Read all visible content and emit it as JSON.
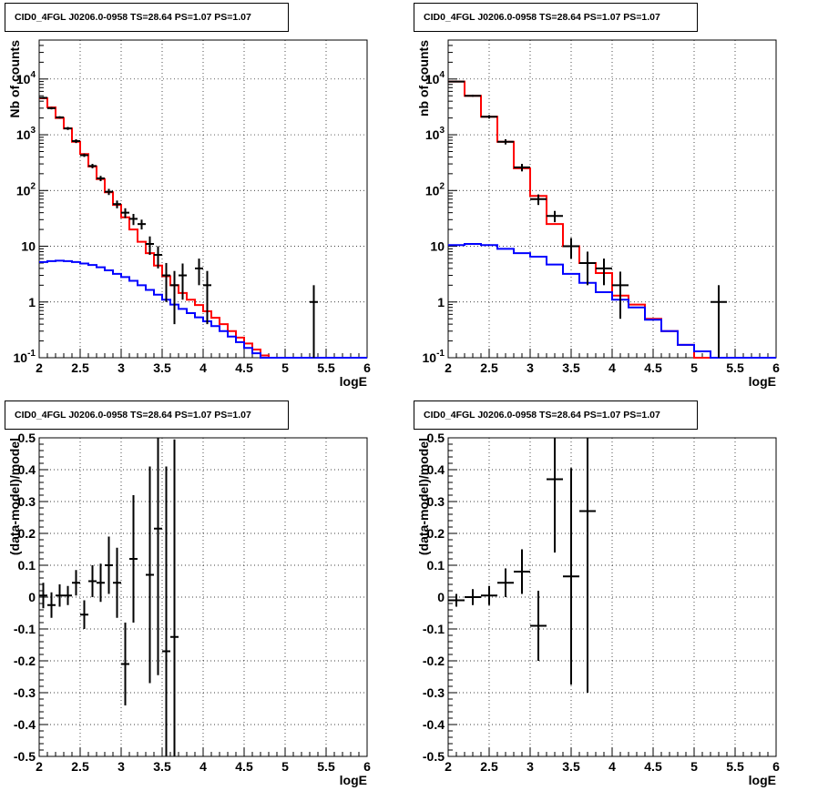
{
  "chart_data": [
    {
      "type": "line",
      "title": "CID0_4FGL J0206.0-0958 TS=28.64 PS=1.07 PS=1.07",
      "xlabel": "logE",
      "ylabel": "Nb of counts",
      "xlim": [
        2,
        6
      ],
      "ylim": [
        0.1,
        50000
      ],
      "yscale": "log",
      "grid": true,
      "x_ticks": [
        "2",
        "2.5",
        "3",
        "3.5",
        "4",
        "4.5",
        "5",
        "5.5",
        "6"
      ],
      "y_ticks": [
        "10^-1",
        "1",
        "10",
        "10^2",
        "10^3",
        "10^4"
      ],
      "series": [
        {
          "kind": "step",
          "color": "#ff0000",
          "bin_width": 0.1,
          "x": [
            2.05,
            2.15,
            2.25,
            2.35,
            2.45,
            2.55,
            2.65,
            2.75,
            2.85,
            2.95,
            3.05,
            3.15,
            3.25,
            3.35,
            3.45,
            3.55,
            3.65,
            3.75,
            3.85,
            3.95,
            4.05,
            4.15,
            4.25,
            4.35,
            4.45,
            4.55,
            4.65,
            4.75,
            4.85,
            4.95,
            5.05,
            5.15,
            5.25,
            5.35,
            5.45,
            5.55,
            5.65,
            5.75,
            5.85,
            5.95
          ],
          "values": [
            4500,
            3100,
            2000,
            1300,
            750,
            450,
            270,
            160,
            93,
            55,
            33,
            20,
            12,
            7.5,
            4.5,
            2.9,
            2.0,
            1.45,
            1.1,
            0.88,
            0.68,
            0.52,
            0.4,
            0.3,
            0.23,
            0.18,
            0.14,
            0.11,
            0.1,
            0.1,
            0.1,
            0.1,
            0.1,
            0.1,
            0.1,
            0.1,
            0.1,
            0.1,
            0.1,
            0.1
          ]
        },
        {
          "kind": "step",
          "color": "#0000ff",
          "bin_width": 0.1,
          "x": [
            2.05,
            2.15,
            2.25,
            2.35,
            2.45,
            2.55,
            2.65,
            2.75,
            2.85,
            2.95,
            3.05,
            3.15,
            3.25,
            3.35,
            3.45,
            3.55,
            3.65,
            3.75,
            3.85,
            3.95,
            4.05,
            4.15,
            4.25,
            4.35,
            4.45,
            4.55,
            4.65,
            4.75,
            4.85,
            4.95,
            5.05,
            5.15,
            5.25,
            5.35,
            5.45,
            5.55,
            5.65,
            5.75,
            5.85,
            5.95
          ],
          "values": [
            5.2,
            5.4,
            5.5,
            5.4,
            5.2,
            4.9,
            4.6,
            4.2,
            3.7,
            3.2,
            2.8,
            2.4,
            2.0,
            1.65,
            1.35,
            1.1,
            0.9,
            0.75,
            0.63,
            0.53,
            0.45,
            0.37,
            0.3,
            0.24,
            0.19,
            0.15,
            0.12,
            0.1,
            0.1,
            0.1,
            0.1,
            0.1,
            0.1,
            0.1,
            0.1,
            0.1,
            0.1,
            0.1,
            0.1,
            0.1
          ]
        },
        {
          "kind": "points",
          "color": "#000000",
          "x_err": 0.05,
          "points": [
            [
              2.05,
              4600,
              200
            ],
            [
              2.15,
              3000,
              150
            ],
            [
              2.25,
              2050,
              100
            ],
            [
              2.35,
              1300,
              80
            ],
            [
              2.45,
              770,
              60
            ],
            [
              2.55,
              430,
              30
            ],
            [
              2.65,
              275,
              25
            ],
            [
              2.75,
              165,
              18
            ],
            [
              2.85,
              95,
              12
            ],
            [
              2.95,
              57,
              9
            ],
            [
              3.05,
              40,
              8
            ],
            [
              3.15,
              31,
              7
            ],
            [
              3.25,
              25,
              5
            ],
            [
              3.35,
              11,
              4
            ],
            [
              3.45,
              7,
              3
            ],
            [
              3.55,
              3,
              2
            ],
            [
              3.65,
              2,
              1.6
            ],
            [
              3.75,
              3,
              1.9
            ],
            [
              3.95,
              4,
              2
            ],
            [
              4.05,
              2,
              1.6
            ],
            [
              5.35,
              1,
              1
            ]
          ]
        }
      ]
    },
    {
      "type": "line",
      "title": "CID0_4FGL J0206.0-0958 TS=28.64 PS=1.07 PS=1.07",
      "xlabel": "logE",
      "ylabel": "nb of counts",
      "xlim": [
        2,
        6
      ],
      "ylim": [
        0.1,
        50000
      ],
      "yscale": "log",
      "grid": true,
      "x_ticks": [
        "2",
        "2.5",
        "3",
        "3.5",
        "4",
        "4.5",
        "5",
        "5.5",
        "6"
      ],
      "y_ticks": [
        "10^-1",
        "1",
        "10",
        "10^2",
        "10^3",
        "10^4"
      ],
      "series": [
        {
          "kind": "step",
          "color": "#ff0000",
          "bin_width": 0.2,
          "x": [
            2.1,
            2.3,
            2.5,
            2.7,
            2.9,
            3.1,
            3.3,
            3.5,
            3.7,
            3.9,
            4.1,
            4.3,
            4.5,
            4.7,
            4.9,
            5.1,
            5.3,
            5.5,
            5.7,
            5.9
          ],
          "values": [
            9000,
            5000,
            2100,
            750,
            250,
            80,
            25,
            10,
            5,
            3.3,
            1.3,
            0.9,
            0.5,
            0.3,
            0.17,
            0.1,
            0.1,
            0.1,
            0.1,
            0.1
          ]
        },
        {
          "kind": "step",
          "color": "#0000ff",
          "bin_width": 0.2,
          "x": [
            2.1,
            2.3,
            2.5,
            2.7,
            2.9,
            3.1,
            3.3,
            3.5,
            3.7,
            3.9,
            4.1,
            4.3,
            4.5,
            4.7,
            4.9,
            5.1,
            5.3,
            5.5,
            5.7,
            5.9
          ],
          "values": [
            10.5,
            11,
            10.5,
            9,
            7.5,
            6.5,
            4.7,
            3.2,
            2.2,
            1.5,
            1.1,
            0.8,
            0.48,
            0.3,
            0.17,
            0.13,
            0.1,
            0.1,
            0.1,
            0.1
          ]
        },
        {
          "kind": "points",
          "color": "#000000",
          "x_err": 0.1,
          "points": [
            [
              2.1,
              9000,
              300
            ],
            [
              2.3,
              5000,
              200
            ],
            [
              2.5,
              2100,
              150
            ],
            [
              2.7,
              750,
              80
            ],
            [
              2.9,
              260,
              40
            ],
            [
              3.1,
              70,
              15
            ],
            [
              3.3,
              35,
              8
            ],
            [
              3.5,
              10,
              4
            ],
            [
              3.7,
              5,
              3
            ],
            [
              3.9,
              4,
              2
            ],
            [
              4.1,
              2,
              1.5
            ],
            [
              5.3,
              1,
              1
            ]
          ]
        }
      ]
    },
    {
      "type": "scatter",
      "title": "CID0_4FGL J0206.0-0958 TS=28.64 PS=1.07 PS=1.07",
      "xlabel": "logE",
      "ylabel": "(data-model)/model",
      "xlim": [
        2,
        6
      ],
      "ylim": [
        -0.5,
        0.5
      ],
      "grid": true,
      "x_ticks": [
        "2",
        "2.5",
        "3",
        "3.5",
        "4",
        "4.5",
        "5",
        "5.5",
        "6"
      ],
      "y_ticks": [
        "-0.5",
        "-0.4",
        "-0.3",
        "-0.2",
        "-0.1",
        "0",
        "0.1",
        "0.2",
        "0.3",
        "0.4",
        "0.5"
      ],
      "x_err": 0.05,
      "points": [
        [
          2.05,
          0.005,
          0.04
        ],
        [
          2.15,
          -0.025,
          0.04
        ],
        [
          2.25,
          0.005,
          0.035
        ],
        [
          2.35,
          0.005,
          0.03
        ],
        [
          2.45,
          0.045,
          0.04
        ],
        [
          2.55,
          -0.055,
          0.045
        ],
        [
          2.65,
          0.05,
          0.05
        ],
        [
          2.75,
          0.045,
          0.06
        ],
        [
          2.85,
          0.1,
          0.09
        ],
        [
          2.95,
          0.045,
          0.11
        ],
        [
          3.05,
          -0.21,
          0.13
        ],
        [
          3.15,
          0.12,
          0.2
        ],
        [
          3.35,
          0.07,
          0.34
        ],
        [
          3.45,
          0.215,
          0.46
        ],
        [
          3.55,
          -0.17,
          0.58
        ],
        [
          3.65,
          -0.125,
          0.62
        ]
      ]
    },
    {
      "type": "scatter",
      "title": "CID0_4FGL J0206.0-0958 TS=28.64 PS=1.07 PS=1.07",
      "xlabel": "logE",
      "ylabel": "(data-model)/model",
      "xlim": [
        2,
        6
      ],
      "ylim": [
        -0.5,
        0.5
      ],
      "grid": true,
      "x_ticks": [
        "2",
        "2.5",
        "3",
        "3.5",
        "4",
        "4.5",
        "5",
        "5.5",
        "6"
      ],
      "y_ticks": [
        "-0.5",
        "-0.4",
        "-0.3",
        "-0.2",
        "-0.1",
        "0",
        "0.1",
        "0.2",
        "0.3",
        "0.4",
        "0.5"
      ],
      "x_err": 0.1,
      "points": [
        [
          2.1,
          -0.01,
          0.02
        ],
        [
          2.3,
          0.0,
          0.025
        ],
        [
          2.5,
          0.005,
          0.03
        ],
        [
          2.7,
          0.045,
          0.045
        ],
        [
          2.9,
          0.08,
          0.07
        ],
        [
          3.1,
          -0.09,
          0.11
        ],
        [
          3.3,
          0.37,
          0.23
        ],
        [
          3.5,
          0.065,
          0.34
        ],
        [
          3.7,
          0.27,
          0.57
        ]
      ]
    }
  ]
}
